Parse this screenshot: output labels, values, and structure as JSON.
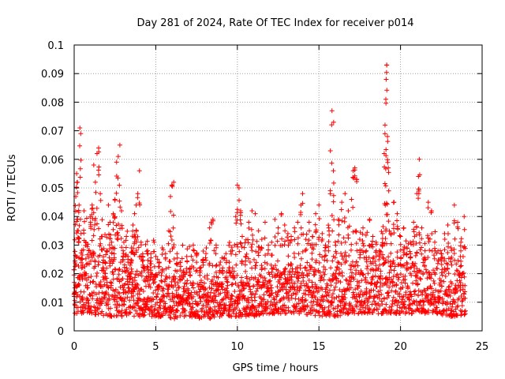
{
  "chart_data": {
    "type": "scatter",
    "title": "Day 281 of 2024, Rate Of TEC Index for receiver p014",
    "xlabel": "GPS time / hours",
    "ylabel": "ROTI / TECUs",
    "xlim": [
      0,
      25
    ],
    "ylim": [
      0,
      0.1
    ],
    "xticks": [
      0,
      5,
      10,
      15,
      20,
      25
    ],
    "xtick_labels": [
      "0",
      "5",
      "10",
      "15",
      "20",
      "25"
    ],
    "yticks": [
      0,
      0.01,
      0.02,
      0.03,
      0.04,
      0.05,
      0.06,
      0.07,
      0.08,
      0.09,
      0.1
    ],
    "ytick_labels": [
      "0",
      "0.01",
      "0.02",
      "0.03",
      "0.04",
      "0.05",
      "0.06",
      "0.07",
      "0.08",
      "0.09",
      "0.1"
    ],
    "grid": true,
    "marker": "+",
    "color": "#ff0000",
    "series": [
      {
        "name": "ROTI",
        "points": [
          [
            0.0,
            0.012
          ],
          [
            0.05,
            0.009
          ],
          [
            0.1,
            0.047
          ],
          [
            0.15,
            0.055
          ],
          [
            0.2,
            0.052
          ],
          [
            0.25,
            0.035
          ],
          [
            0.3,
            0.044
          ],
          [
            0.35,
            0.071
          ],
          [
            0.4,
            0.069
          ],
          [
            0.45,
            0.022
          ],
          [
            0.5,
            0.018
          ],
          [
            0.6,
            0.042
          ],
          [
            0.7,
            0.031
          ],
          [
            0.8,
            0.015
          ],
          [
            0.9,
            0.028
          ],
          [
            1.0,
            0.038
          ],
          [
            1.1,
            0.044
          ],
          [
            1.2,
            0.058
          ],
          [
            1.3,
            0.052
          ],
          [
            1.4,
            0.062
          ],
          [
            1.5,
            0.064
          ],
          [
            1.6,
            0.048
          ],
          [
            1.7,
            0.033
          ],
          [
            1.8,
            0.021
          ],
          [
            1.9,
            0.019
          ],
          [
            2.0,
            0.028
          ],
          [
            2.1,
            0.044
          ],
          [
            2.2,
            0.038
          ],
          [
            2.3,
            0.031
          ],
          [
            2.4,
            0.041
          ],
          [
            2.5,
            0.046
          ],
          [
            2.6,
            0.059
          ],
          [
            2.7,
            0.061
          ],
          [
            2.8,
            0.065
          ],
          [
            2.9,
            0.042
          ],
          [
            3.0,
            0.028
          ],
          [
            3.1,
            0.021
          ],
          [
            3.2,
            0.033
          ],
          [
            3.3,
            0.026
          ],
          [
            3.4,
            0.018
          ],
          [
            3.5,
            0.029
          ],
          [
            3.6,
            0.037
          ],
          [
            3.7,
            0.041
          ],
          [
            3.8,
            0.044
          ],
          [
            3.9,
            0.048
          ],
          [
            4.0,
            0.056
          ],
          [
            4.1,
            0.031
          ],
          [
            4.2,
            0.026
          ],
          [
            4.3,
            0.022
          ],
          [
            4.5,
            0.028
          ],
          [
            4.7,
            0.027
          ],
          [
            4.9,
            0.031
          ],
          [
            5.0,
            0.019
          ],
          [
            5.2,
            0.024
          ],
          [
            5.4,
            0.029
          ],
          [
            5.6,
            0.027
          ],
          [
            5.8,
            0.035
          ],
          [
            5.9,
            0.047
          ],
          [
            6.0,
            0.051
          ],
          [
            6.1,
            0.052
          ],
          [
            6.3,
            0.027
          ],
          [
            6.5,
            0.024
          ],
          [
            6.7,
            0.021
          ],
          [
            6.9,
            0.026
          ],
          [
            7.1,
            0.022
          ],
          [
            7.3,
            0.03
          ],
          [
            7.5,
            0.027
          ],
          [
            7.7,
            0.022
          ],
          [
            7.9,
            0.025
          ],
          [
            8.1,
            0.029
          ],
          [
            8.3,
            0.036
          ],
          [
            8.4,
            0.038
          ],
          [
            8.5,
            0.039
          ],
          [
            8.7,
            0.03
          ],
          [
            8.9,
            0.023
          ],
          [
            9.1,
            0.022
          ],
          [
            9.3,
            0.027
          ],
          [
            9.5,
            0.024
          ],
          [
            9.7,
            0.028
          ],
          [
            9.9,
            0.04
          ],
          [
            10.0,
            0.051
          ],
          [
            10.1,
            0.05
          ],
          [
            10.2,
            0.042
          ],
          [
            10.3,
            0.033
          ],
          [
            10.5,
            0.026
          ],
          [
            10.7,
            0.038
          ],
          [
            10.9,
            0.042
          ],
          [
            11.1,
            0.041
          ],
          [
            11.3,
            0.035
          ],
          [
            11.5,
            0.032
          ],
          [
            11.7,
            0.038
          ],
          [
            11.9,
            0.03
          ],
          [
            12.1,
            0.031
          ],
          [
            12.3,
            0.039
          ],
          [
            12.5,
            0.036
          ],
          [
            12.7,
            0.041
          ],
          [
            12.9,
            0.037
          ],
          [
            13.1,
            0.034
          ],
          [
            13.3,
            0.033
          ],
          [
            13.5,
            0.036
          ],
          [
            13.7,
            0.038
          ],
          [
            13.9,
            0.044
          ],
          [
            14.0,
            0.048
          ],
          [
            14.2,
            0.032
          ],
          [
            14.4,
            0.038
          ],
          [
            14.6,
            0.033
          ],
          [
            14.8,
            0.041
          ],
          [
            15.0,
            0.044
          ],
          [
            15.2,
            0.034
          ],
          [
            15.4,
            0.03
          ],
          [
            15.6,
            0.036
          ],
          [
            15.7,
            0.063
          ],
          [
            15.8,
            0.077
          ],
          [
            15.9,
            0.073
          ],
          [
            16.0,
            0.031
          ],
          [
            16.2,
            0.039
          ],
          [
            16.4,
            0.045
          ],
          [
            16.6,
            0.048
          ],
          [
            16.8,
            0.042
          ],
          [
            17.0,
            0.046
          ],
          [
            17.1,
            0.056
          ],
          [
            17.2,
            0.057
          ],
          [
            17.3,
            0.053
          ],
          [
            17.5,
            0.032
          ],
          [
            17.7,
            0.036
          ],
          [
            17.9,
            0.028
          ],
          [
            18.1,
            0.039
          ],
          [
            18.3,
            0.033
          ],
          [
            18.5,
            0.031
          ],
          [
            18.7,
            0.028
          ],
          [
            18.9,
            0.034
          ],
          [
            19.0,
            0.062
          ],
          [
            19.05,
            0.072
          ],
          [
            19.1,
            0.081
          ],
          [
            19.12,
            0.088
          ],
          [
            19.15,
            0.093
          ],
          [
            19.2,
            0.068
          ],
          [
            19.25,
            0.057
          ],
          [
            19.4,
            0.034
          ],
          [
            19.6,
            0.045
          ],
          [
            19.8,
            0.041
          ],
          [
            20.0,
            0.033
          ],
          [
            20.2,
            0.036
          ],
          [
            20.4,
            0.029
          ],
          [
            20.6,
            0.031
          ],
          [
            20.8,
            0.038
          ],
          [
            21.0,
            0.048
          ],
          [
            21.1,
            0.054
          ],
          [
            21.15,
            0.06
          ],
          [
            21.3,
            0.036
          ],
          [
            21.5,
            0.028
          ],
          [
            21.7,
            0.045
          ],
          [
            21.9,
            0.042
          ],
          [
            22.1,
            0.031
          ],
          [
            22.3,
            0.028
          ],
          [
            22.5,
            0.027
          ],
          [
            22.7,
            0.034
          ],
          [
            22.9,
            0.037
          ],
          [
            23.1,
            0.029
          ],
          [
            23.3,
            0.044
          ],
          [
            23.5,
            0.038
          ],
          [
            23.7,
            0.031
          ],
          [
            23.9,
            0.04
          ]
        ],
        "bulk_band": {
          "note": "dense band of points forming the bulk of the distribution",
          "x_range": [
            0,
            24
          ],
          "step_hours": 0.035,
          "points_per_step": 3,
          "floor_by_hour": [
            [
              0,
              0.006
            ],
            [
              1,
              0.006
            ],
            [
              2,
              0.005
            ],
            [
              3,
              0.005
            ],
            [
              4,
              0.005
            ],
            [
              5,
              0.005
            ],
            [
              6,
              0.004
            ],
            [
              7,
              0.005
            ],
            [
              8,
              0.004
            ],
            [
              9,
              0.005
            ],
            [
              10,
              0.005
            ],
            [
              11,
              0.005
            ],
            [
              12,
              0.006
            ],
            [
              13,
              0.006
            ],
            [
              14,
              0.006
            ],
            [
              15,
              0.005
            ],
            [
              16,
              0.005
            ],
            [
              17,
              0.006
            ],
            [
              18,
              0.006
            ],
            [
              19,
              0.006
            ],
            [
              20,
              0.006
            ],
            [
              21,
              0.006
            ],
            [
              22,
              0.006
            ],
            [
              23,
              0.005
            ],
            [
              24,
              0.005
            ]
          ],
          "upper_by_hour": [
            [
              0,
              0.03
            ],
            [
              1,
              0.028
            ],
            [
              2,
              0.027
            ],
            [
              3,
              0.024
            ],
            [
              4,
              0.021
            ],
            [
              5,
              0.02
            ],
            [
              6,
              0.019
            ],
            [
              7,
              0.018
            ],
            [
              8,
              0.019
            ],
            [
              9,
              0.019
            ],
            [
              10,
              0.02
            ],
            [
              11,
              0.02
            ],
            [
              12,
              0.019
            ],
            [
              13,
              0.021
            ],
            [
              14,
              0.023
            ],
            [
              15,
              0.025
            ],
            [
              16,
              0.025
            ],
            [
              17,
              0.025
            ],
            [
              18,
              0.023
            ],
            [
              19,
              0.026
            ],
            [
              20,
              0.024
            ],
            [
              21,
              0.024
            ],
            [
              22,
              0.023
            ],
            [
              23,
              0.022
            ],
            [
              24,
              0.021
            ]
          ]
        }
      }
    ]
  }
}
